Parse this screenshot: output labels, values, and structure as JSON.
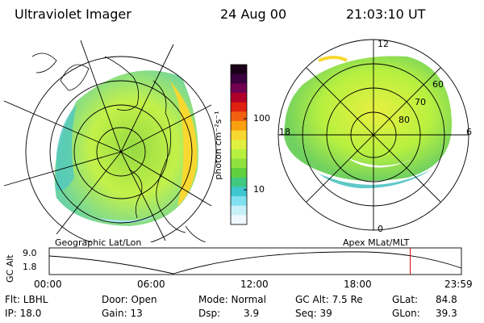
{
  "header": {
    "title": "Ultraviolet Imager",
    "date": "24 Aug 00",
    "time": "21:03:10 UT"
  },
  "left_panel": {
    "label": "Geographic Lat/Lon"
  },
  "right_panel": {
    "label": "Apex MLat/MLT",
    "mlt_labels": [
      "12",
      "6",
      "0",
      "18"
    ],
    "lat_labels": [
      "60",
      "70",
      "80"
    ]
  },
  "colorbar": {
    "unit_label": "photon cm⁻²s⁻¹",
    "ticks": [
      "100",
      "10"
    ],
    "colors": [
      "#1a0018",
      "#3a0040",
      "#700050",
      "#b0002a",
      "#e02010",
      "#f06010",
      "#f8a010",
      "#f8d830",
      "#e0f040",
      "#b8f040",
      "#90e040",
      "#60d040",
      "#40c880",
      "#40c8d0",
      "#80e0f0",
      "#c8f0f8",
      "#f0f8ff"
    ]
  },
  "altitude_plot": {
    "ylabel": "GC Alt",
    "ymax_label": "9.0",
    "ymin_label": "1.8",
    "xticks": [
      "00:00",
      "06:00",
      "12:00",
      "18:00",
      "23:59"
    ],
    "current_time_fraction": 0.876,
    "marker_color": "#d00000"
  },
  "info": {
    "flt": "Flt: LBHL",
    "ip": "IP: 18.0",
    "door": "Door: Open",
    "gain": "Gain: 13",
    "mode": "Mode: Normal",
    "dsp_label": "Dsp:",
    "dsp_value": "3.9",
    "gcalt": "GC Alt: 7.5 Re",
    "seq": "Seq: 39",
    "glat_label": "GLat:",
    "glat_value": "84.8",
    "glon_label": "GLon:",
    "glon_value": "39.3"
  }
}
